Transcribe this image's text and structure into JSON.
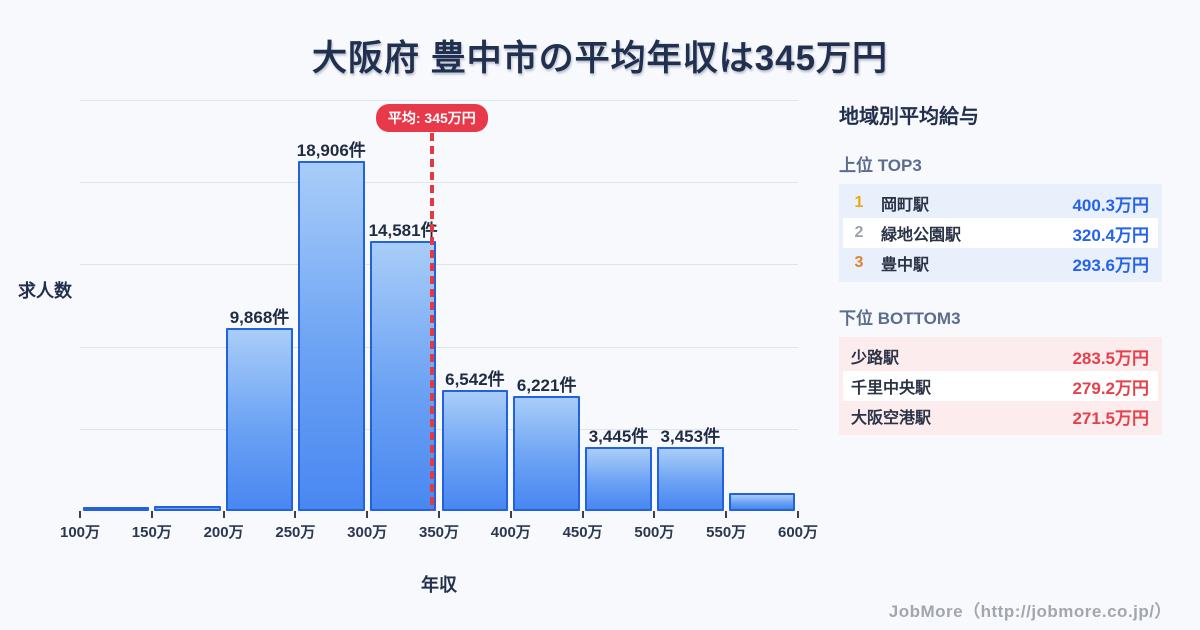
{
  "title": "大阪府 豊中市の平均年収は345万円",
  "chart_data": {
    "type": "bar",
    "title": "大阪府 豊中市の平均年収は345万円",
    "xlabel": "年収",
    "ylabel": "求人数",
    "x_tick_labels": [
      "100万",
      "150万",
      "200万",
      "250万",
      "300万",
      "350万",
      "400万",
      "450万",
      "500万",
      "550万",
      "600万"
    ],
    "categories": [
      "100万-150万",
      "150万-200万",
      "200万-250万",
      "250万-300万",
      "300万-350万",
      "350万-400万",
      "400万-450万",
      "450万-500万",
      "500万-550万",
      "550万-600万"
    ],
    "values": [
      120,
      270,
      9868,
      18906,
      14581,
      6542,
      6221,
      3445,
      3453,
      970
    ],
    "bar_labels": [
      "",
      "",
      "9,868件",
      "18,906件",
      "14,581件",
      "6,542件",
      "6,221件",
      "3,445件",
      "3,453件",
      ""
    ],
    "x_range_min": 100,
    "x_range_max": 600,
    "average": {
      "value": 345,
      "badge_label": "平均: 345万円"
    },
    "grid": true,
    "legend": "none"
  },
  "sidebar": {
    "title": "地域別平均給与",
    "top3": {
      "heading": "上位 TOP3",
      "rows": [
        {
          "rank": "1",
          "station": "岡町駅",
          "value": "400.3万円"
        },
        {
          "rank": "2",
          "station": "緑地公園駅",
          "value": "320.4万円"
        },
        {
          "rank": "3",
          "station": "豊中駅",
          "value": "293.6万円"
        }
      ]
    },
    "bottom3": {
      "heading": "下位 BOTTOM3",
      "rows": [
        {
          "station": "少路駅",
          "value": "283.5万円"
        },
        {
          "station": "千里中央駅",
          "value": "279.2万円"
        },
        {
          "station": "大阪空港駅",
          "value": "271.5万円"
        }
      ]
    }
  },
  "footer": {
    "credit": "JobMore（http://jobmore.co.jp/）"
  },
  "colors": {
    "background": "#f8f9fc",
    "title_text": "#223050",
    "gridline": "#dfe4ee",
    "bar_gradient_top": "#a9cdf8",
    "bar_gradient_bottom": "#4987f1",
    "bar_border": "#2263dd",
    "average_red": "#e8394a",
    "top3_row_tint": "#e9f0fc",
    "bottom3_row_tint": "#fdecee",
    "top3_value_blue": "#2563eb",
    "bottom3_value_red": "#e6404a",
    "rank1_gold": "#eaa814",
    "rank2_gray": "#9aa1ad",
    "rank3_bronze": "#e0802e",
    "heading_gray_blue": "#5b6d8e",
    "footer_gray": "#a2a6ad"
  }
}
